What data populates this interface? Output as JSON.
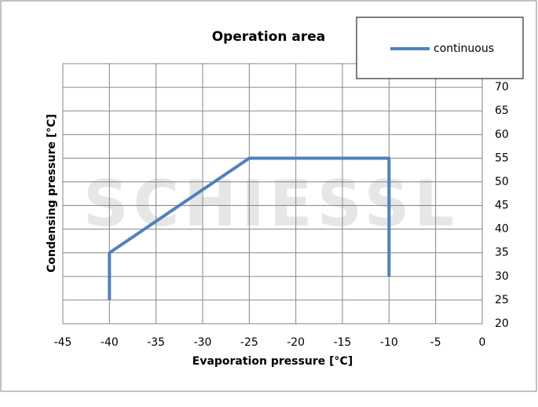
{
  "chart_data": {
    "type": "line",
    "title": "Operation area",
    "xlabel": "Evaporation pressure [°C]",
    "ylabel": "Condensing pressure [°C]",
    "watermark": "SCHIESSL",
    "x": [
      -40,
      -40,
      -25,
      -10,
      -10
    ],
    "series": [
      {
        "name": "continuous",
        "color": "#4f81bd",
        "values": [
          25,
          35,
          55,
          55,
          30
        ]
      }
    ],
    "xlim": [
      -45,
      0
    ],
    "xticks": [
      -45,
      -40,
      -35,
      -30,
      -25,
      -20,
      -15,
      -10,
      -5,
      0
    ],
    "ylim": [
      20,
      75
    ],
    "yticks": [
      20,
      25,
      30,
      35,
      40,
      45,
      50,
      55,
      60,
      65,
      70
    ],
    "grid": true,
    "legend": "top-right"
  }
}
